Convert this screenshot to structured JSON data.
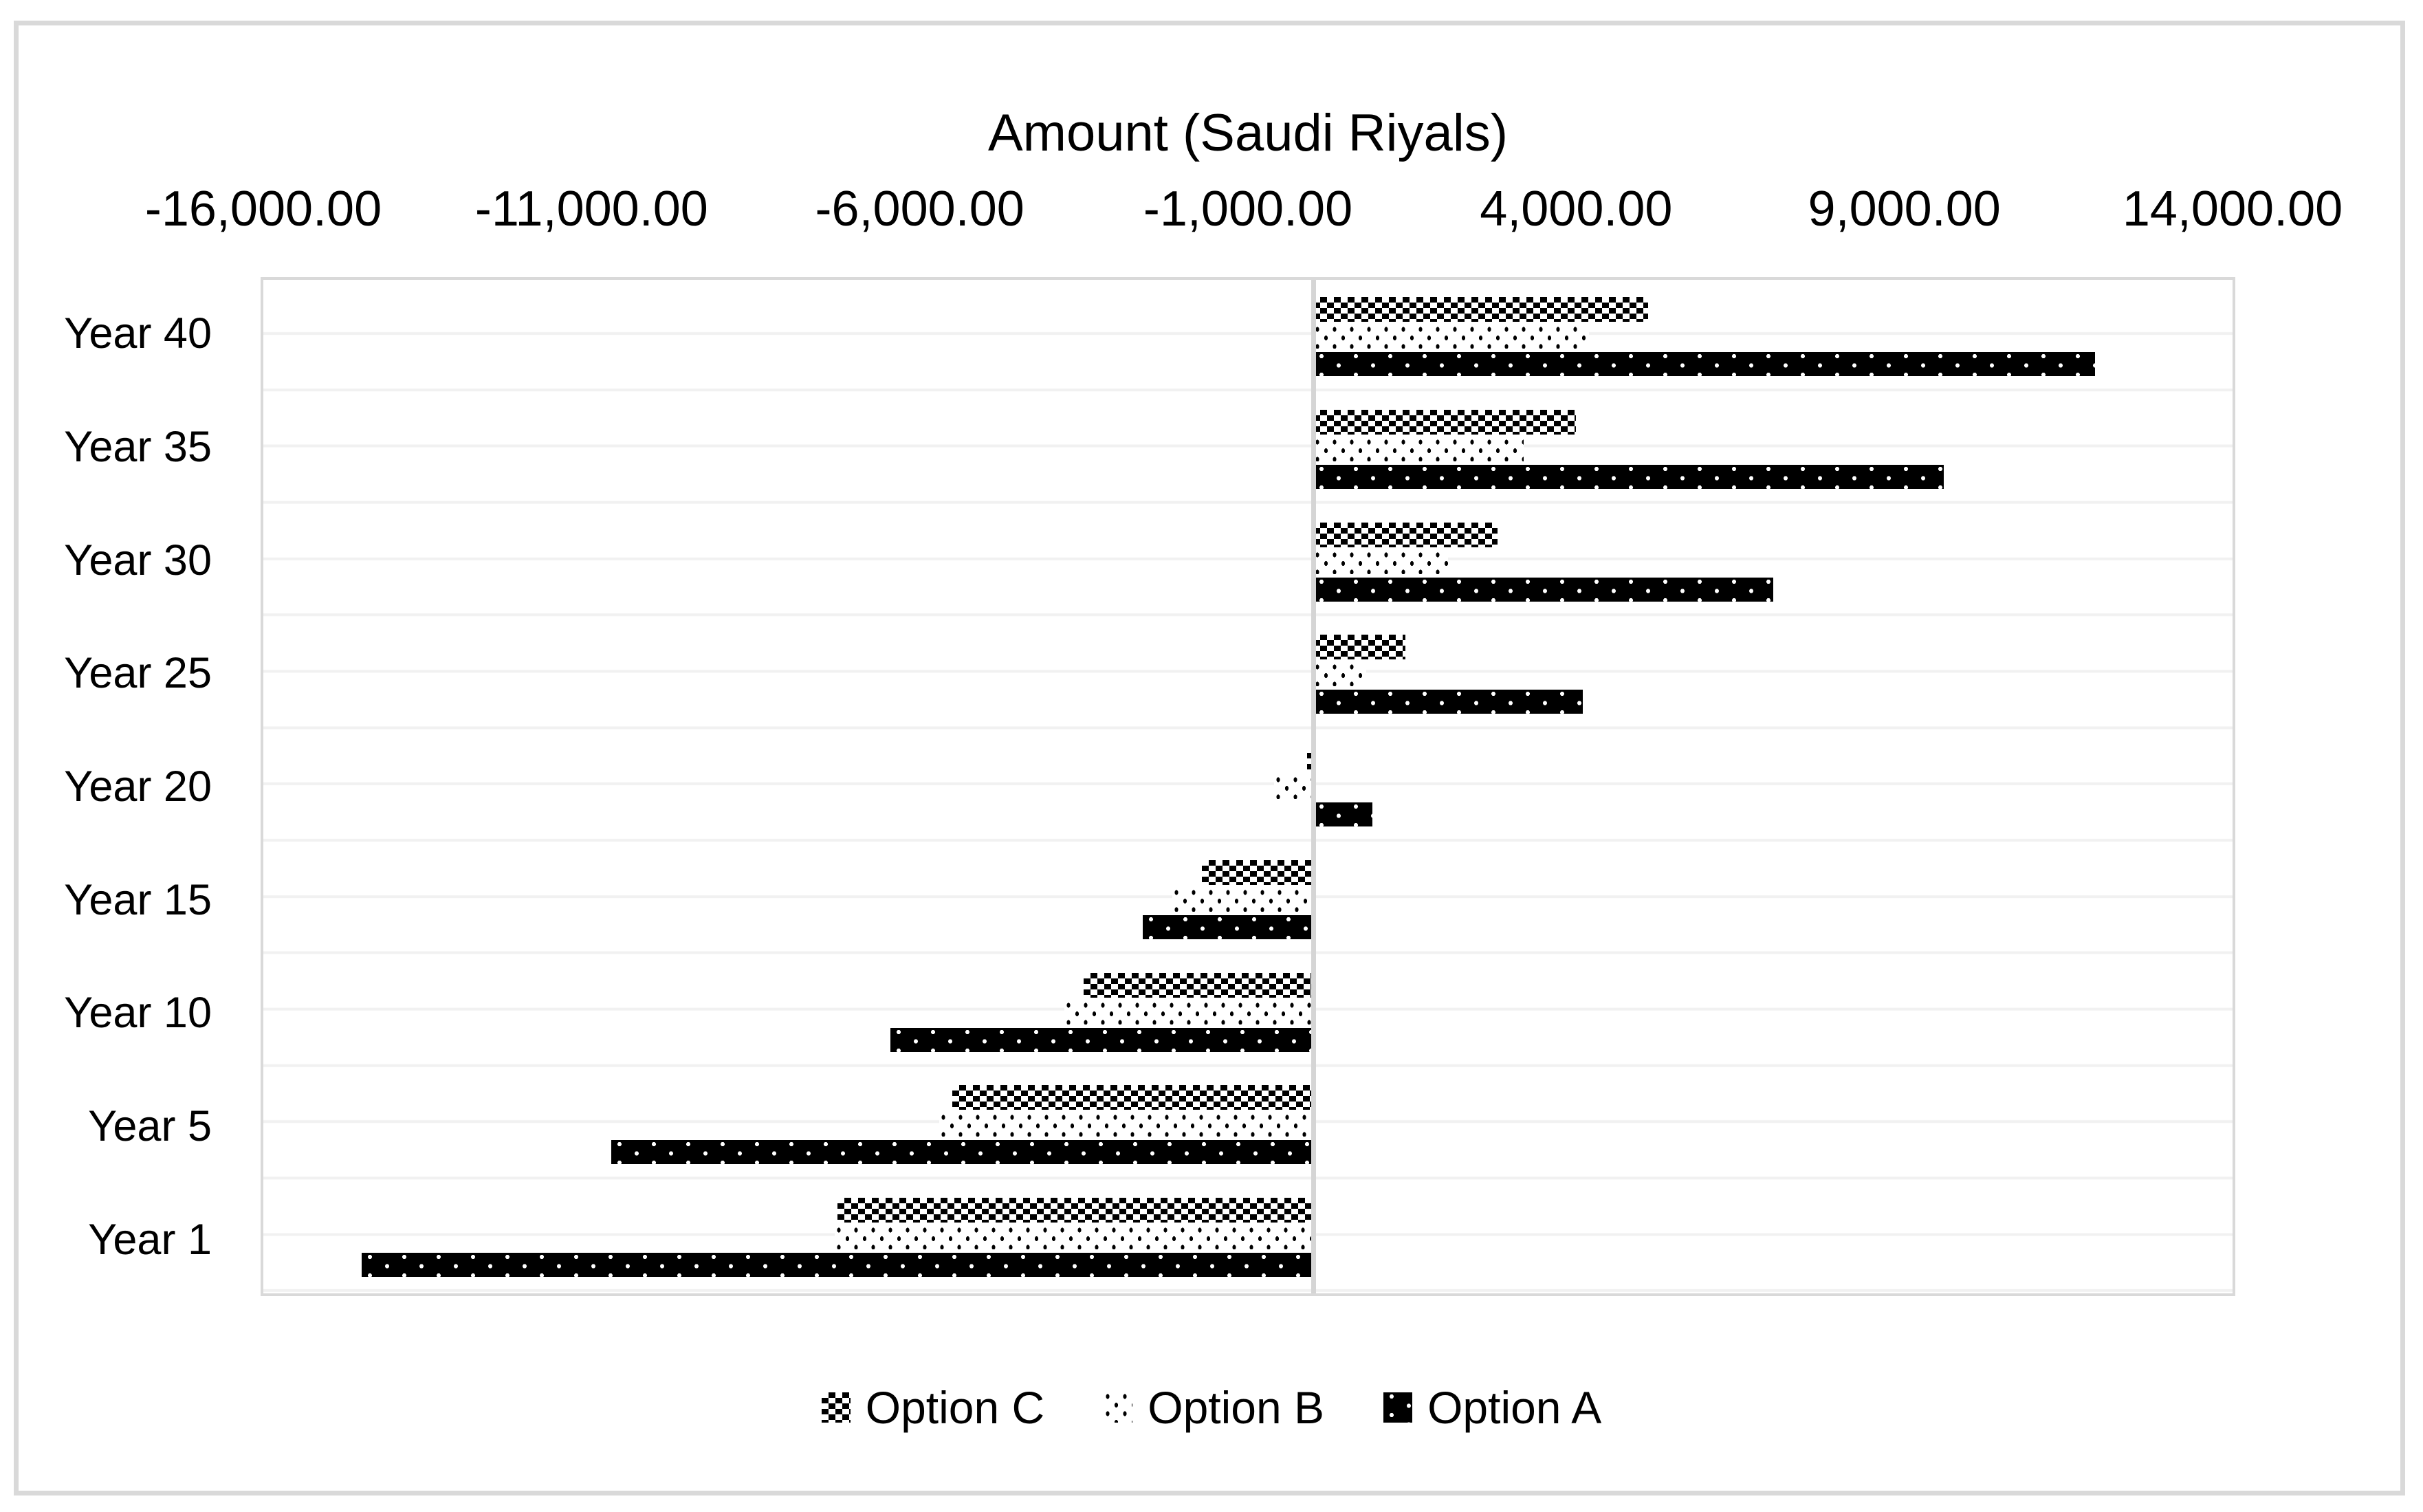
{
  "page": {
    "background": "#ffffff",
    "frame_border_color": "#d9d9d9"
  },
  "chart_data": {
    "type": "bar",
    "orientation": "horizontal",
    "title": "Amount (Saudi Riyals)",
    "x_axis": {
      "min": -16000,
      "max": 14000,
      "tick_step": 5000,
      "tick_values": [
        -16000,
        -11000,
        -6000,
        -1000,
        4000,
        9000,
        14000
      ],
      "tick_labels": [
        "-16,000.00",
        "-11,000.00",
        "-6,000.00",
        "-1,000.00",
        "4,000.00",
        "9,000.00",
        "14,000.00"
      ],
      "labels_position": "top"
    },
    "categories": [
      "Year 40",
      "Year 35",
      "Year 30",
      "Year 25",
      "Year 20",
      "Year 15",
      "Year 10",
      "Year 5",
      "Year 1"
    ],
    "series": [
      {
        "name": "Option C",
        "pattern": "checker",
        "values": [
          5100,
          4000,
          2800,
          1400,
          -100,
          -1700,
          -3500,
          -5500,
          -7250
        ]
      },
      {
        "name": "Option B",
        "pattern": "dots-on-white",
        "values": [
          4200,
          3200,
          2050,
          800,
          -600,
          -2150,
          -3800,
          -5700,
          -7300
        ]
      },
      {
        "name": "Option A",
        "pattern": "dots-on-black",
        "values": [
          11900,
          9600,
          7000,
          4100,
          900,
          -2600,
          -6450,
          -10700,
          -14500
        ]
      }
    ],
    "legend": {
      "position": "bottom",
      "items": [
        "Option C",
        "Option B",
        "Option A"
      ]
    },
    "grid": {
      "horizontal_gridlines": true,
      "vertical_gridlines": false,
      "gridline_color": "#f1f1f1"
    },
    "zero_axis_line": true,
    "axis_line_color": "#d5d5d5",
    "plot_border_color": "#d9d9d9",
    "bar_colors": {
      "fill": "#000000",
      "background": "#ffffff"
    }
  }
}
